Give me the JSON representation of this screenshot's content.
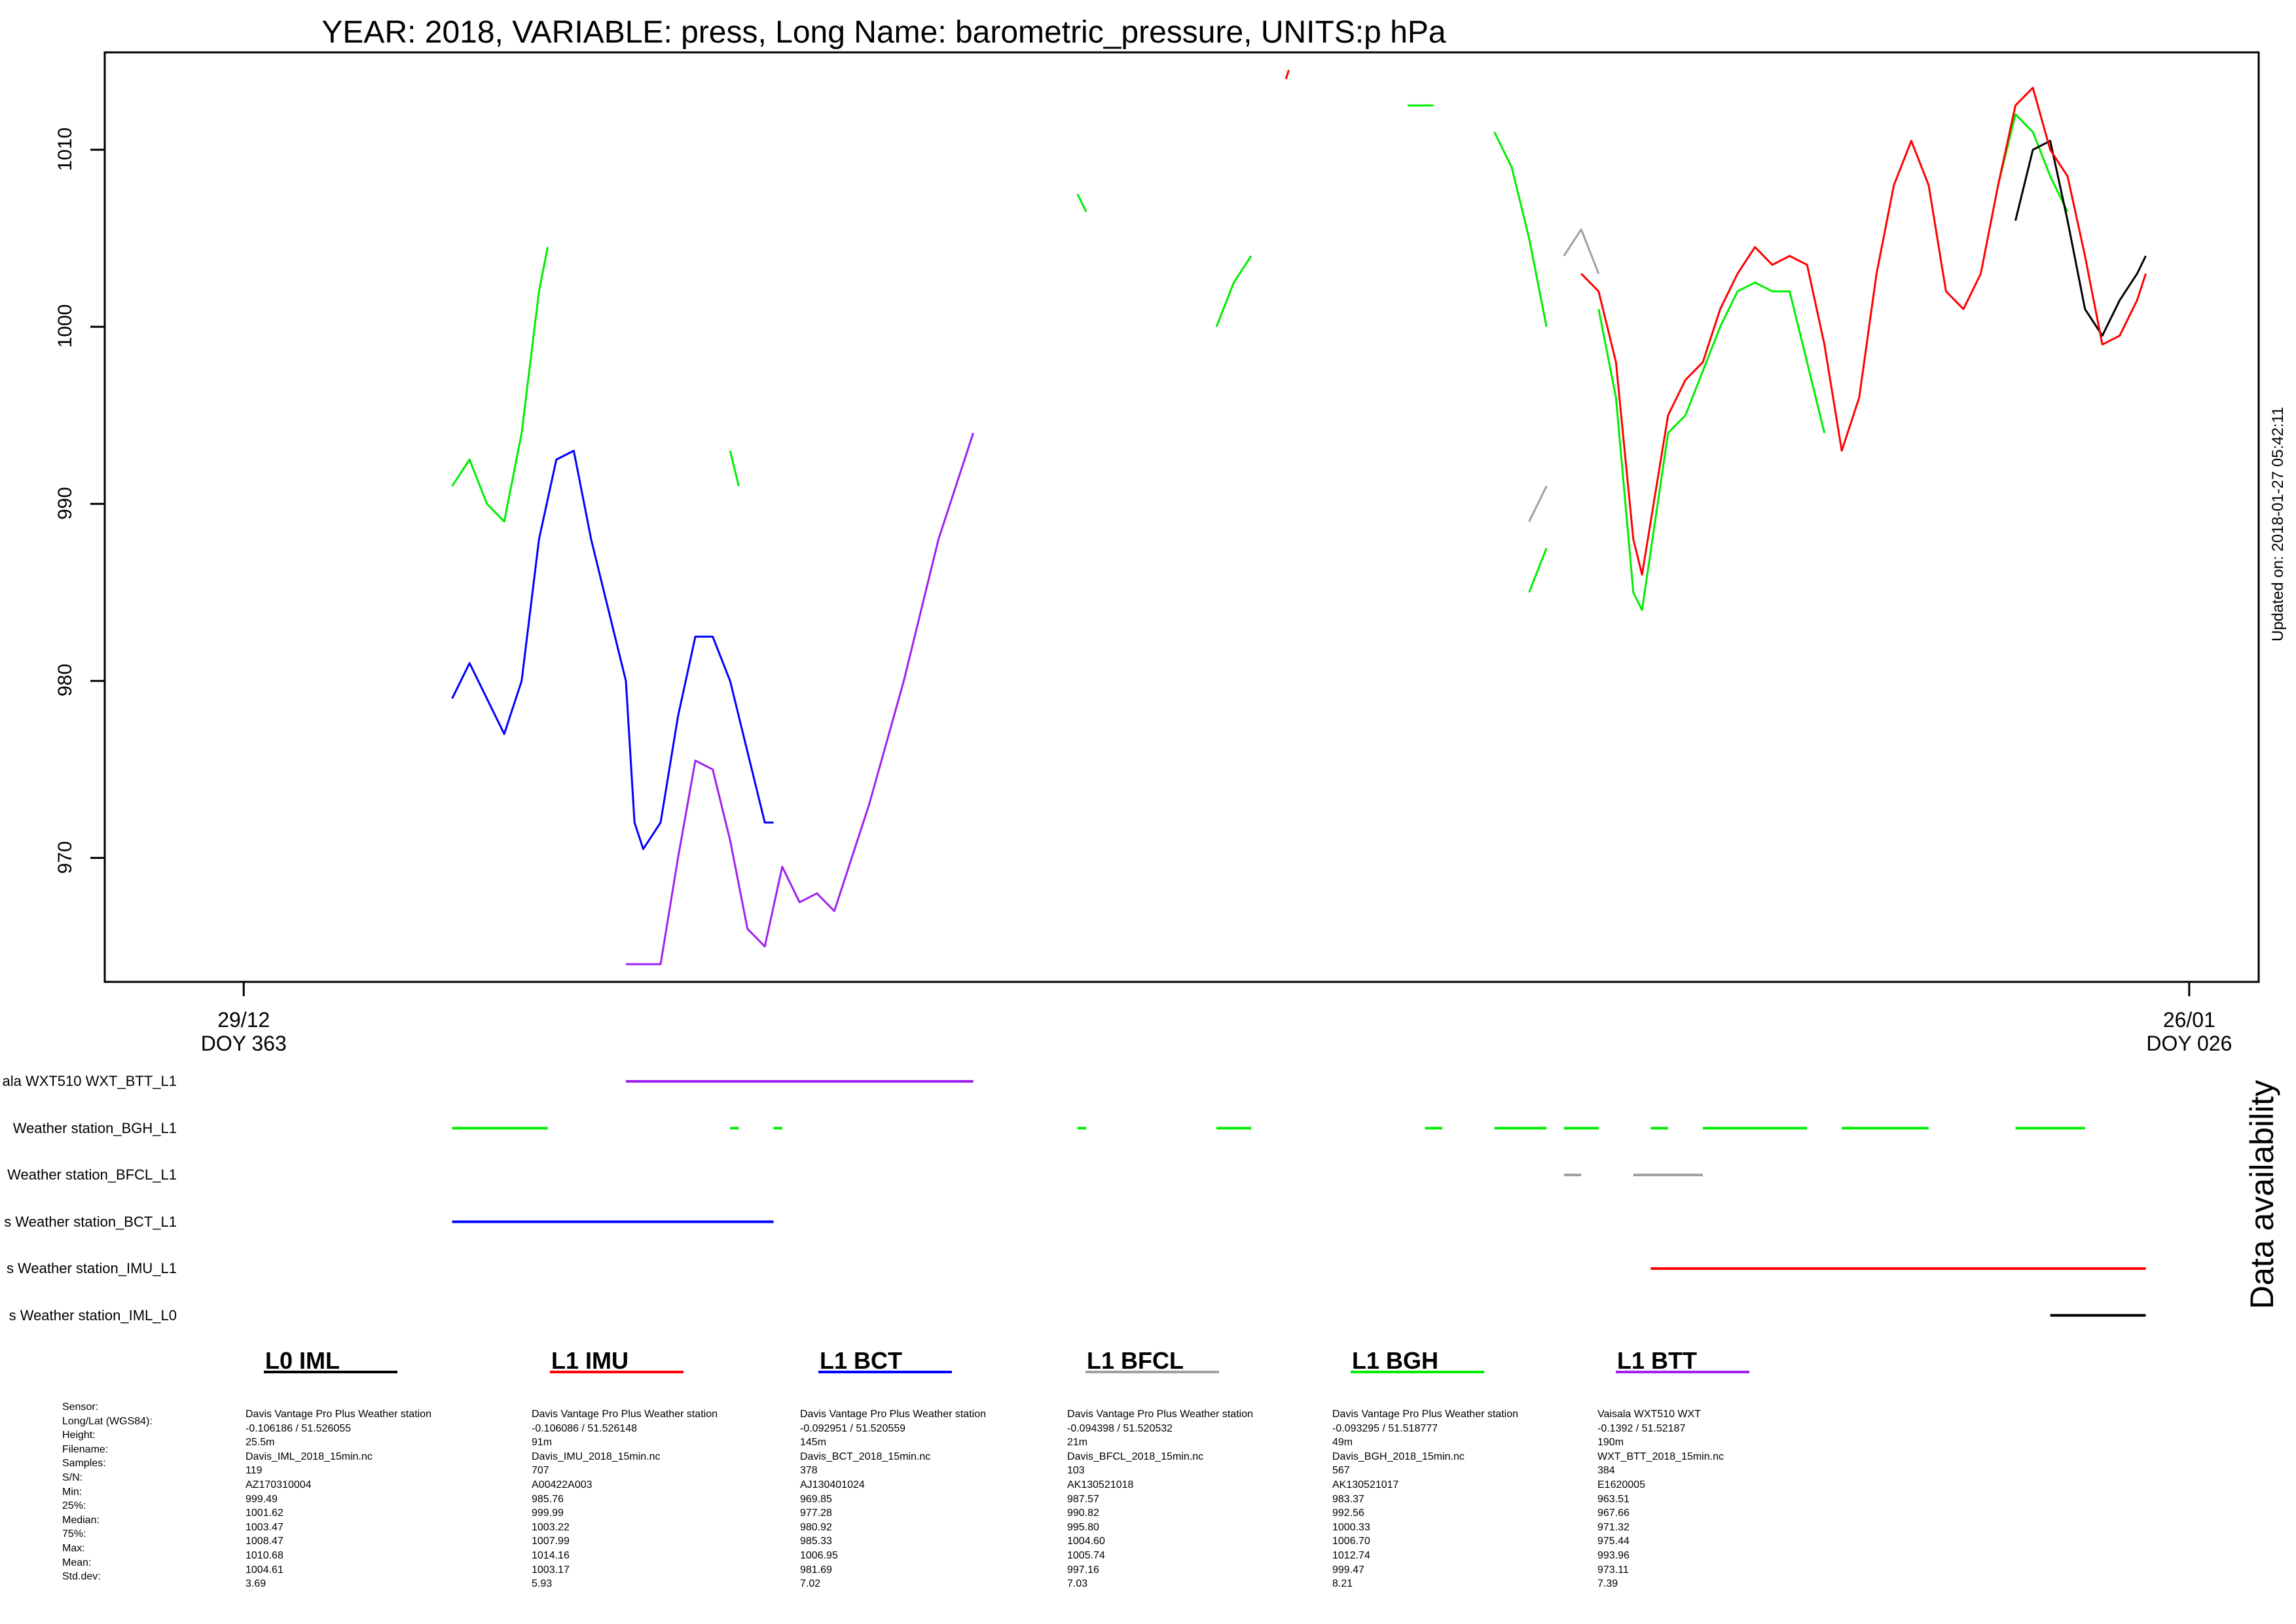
{
  "chart_data": {
    "type": "line",
    "title": "YEAR: 2018, VARIABLE: press, Long Name: barometric_pressure, UNITS:p hPa",
    "xlabel": "",
    "ylabel": "",
    "ylim": [
      963,
      1015.5
    ],
    "y_ticks": [
      "970",
      "980",
      "990",
      "1000",
      "1010"
    ],
    "x_range": [
      "2017-12-27",
      "2018-01-27"
    ],
    "x_ticks": [
      {
        "date": "29/12",
        "doy": "DOY 363"
      },
      {
        "date": "26/01",
        "doy": "DOY 026"
      }
    ],
    "updated": "Updated on: 2018-01-27 05:42:11",
    "series": [
      {
        "name": "L0 IML",
        "color": "#000000",
        "points": [
          [
            "2018-01-23 12:00",
            1006
          ],
          [
            "2018-01-23 18:00",
            1010
          ],
          [
            "2018-01-24 00:00",
            1010.5
          ],
          [
            "2018-01-24 06:00",
            1006
          ],
          [
            "2018-01-24 12:00",
            1001
          ],
          [
            "2018-01-24 18:00",
            999.5
          ],
          [
            "2018-01-25 00:00",
            1001.5
          ],
          [
            "2018-01-25 06:00",
            1003
          ],
          [
            "2018-01-25 09:00",
            1004
          ]
        ]
      },
      {
        "name": "L1 IMU",
        "color": "#ff0000",
        "points": [
          [
            "2018-01-17 06:00",
            1003
          ],
          [
            "2018-01-17 12:00",
            1002
          ],
          [
            "2018-01-17 18:00",
            998
          ],
          [
            "2018-01-18 00:00",
            988
          ],
          [
            "2018-01-18 03:00",
            986
          ],
          [
            "2018-01-18 12:00",
            995
          ],
          [
            "2018-01-18 18:00",
            997
          ],
          [
            "2018-01-19 00:00",
            998
          ],
          [
            "2018-01-19 06:00",
            1001
          ],
          [
            "2018-01-19 12:00",
            1003
          ],
          [
            "2018-01-19 18:00",
            1004.5
          ],
          [
            "2018-01-20 00:00",
            1003.5
          ],
          [
            "2018-01-20 06:00",
            1004
          ],
          [
            "2018-01-20 12:00",
            1003.5
          ],
          [
            "2018-01-20 18:00",
            999
          ],
          [
            "2018-01-21 00:00",
            993
          ],
          [
            "2018-01-21 06:00",
            996
          ],
          [
            "2018-01-21 12:00",
            1003
          ],
          [
            "2018-01-21 18:00",
            1008
          ],
          [
            "2018-01-22 00:00",
            1010.5
          ],
          [
            "2018-01-22 06:00",
            1008
          ],
          [
            "2018-01-22 12:00",
            1002
          ],
          [
            "2018-01-22 18:00",
            1001
          ],
          [
            "2018-01-23 00:00",
            1003
          ],
          [
            "2018-01-23 06:00",
            1008
          ],
          [
            "2018-01-23 12:00",
            1012.5
          ],
          [
            "2018-01-23 18:00",
            1013.5
          ],
          [
            "2018-01-24 00:00",
            1010
          ],
          [
            "2018-01-24 06:00",
            1008.5
          ],
          [
            "2018-01-24 12:00",
            1004
          ],
          [
            "2018-01-24 18:00",
            999
          ],
          [
            "2018-01-25 00:00",
            999.5
          ],
          [
            "2018-01-25 06:00",
            1001.5
          ],
          [
            "2018-01-25 09:00",
            1003
          ]
        ]
      },
      {
        "name": "L1 BCT",
        "color": "#0000ff",
        "points": [
          [
            "2018-01-01 00:00",
            979
          ],
          [
            "2018-01-01 06:00",
            981
          ],
          [
            "2018-01-01 12:00",
            979
          ],
          [
            "2018-01-01 18:00",
            977
          ],
          [
            "2018-01-02 00:00",
            980
          ],
          [
            "2018-01-02 06:00",
            988
          ],
          [
            "2018-01-02 12:00",
            992.5
          ],
          [
            "2018-01-02 18:00",
            993
          ],
          [
            "2018-01-03 00:00",
            988
          ],
          [
            "2018-01-03 06:00",
            984
          ],
          [
            "2018-01-03 12:00",
            980
          ],
          [
            "2018-01-03 15:00",
            972
          ],
          [
            "2018-01-03 18:00",
            970.5
          ],
          [
            "2018-01-04 00:00",
            972
          ],
          [
            "2018-01-04 06:00",
            978
          ],
          [
            "2018-01-04 12:00",
            982.5
          ],
          [
            "2018-01-04 18:00",
            982.5
          ],
          [
            "2018-01-05 00:00",
            980
          ],
          [
            "2018-01-05 06:00",
            976
          ],
          [
            "2018-01-05 12:00",
            972
          ],
          [
            "2018-01-05 15:00",
            972
          ]
        ]
      },
      {
        "name": "L1 BFCL",
        "color": "#a0a0a0",
        "points": [
          [
            "2018-01-17 00:00",
            1004
          ],
          [
            "2018-01-17 06:00",
            1005.5
          ],
          [
            "2018-01-17 12:00",
            1003
          ]
        ]
      },
      {
        "name": "L1 BGH",
        "color": "#00ee00",
        "points": [
          [
            "2018-01-01 00:00",
            991
          ],
          [
            "2018-01-01 06:00",
            992.5
          ],
          [
            "2018-01-01 12:00",
            990
          ],
          [
            "2018-01-01 18:00",
            989
          ],
          [
            "2018-01-02 00:00",
            994
          ],
          [
            "2018-01-02 06:00",
            1002
          ],
          [
            "2018-01-02 09:00",
            1004.5
          ]
        ]
      },
      {
        "name": "L1 BTT",
        "color": "#a020f0",
        "points": [
          [
            "2018-01-03 12:00",
            964
          ],
          [
            "2018-01-04 00:00",
            964
          ],
          [
            "2018-01-04 06:00",
            970
          ],
          [
            "2018-01-04 12:00",
            975.5
          ],
          [
            "2018-01-04 18:00",
            975
          ],
          [
            "2018-01-05 00:00",
            971
          ],
          [
            "2018-01-05 06:00",
            966
          ],
          [
            "2018-01-05 12:00",
            965
          ],
          [
            "2018-01-05 18:00",
            969.5
          ],
          [
            "2018-01-06 00:00",
            967.5
          ],
          [
            "2018-01-06 06:00",
            968
          ],
          [
            "2018-01-06 12:00",
            967
          ],
          [
            "2018-01-07 00:00",
            973
          ],
          [
            "2018-01-07 12:00",
            980
          ],
          [
            "2018-01-08 00:00",
            988
          ],
          [
            "2018-01-08 12:00",
            994
          ]
        ]
      }
    ],
    "extra_segments": [
      {
        "series": "L1 BGH",
        "color": "#00ee00",
        "points": [
          [
            "2018-01-05 00:00",
            993
          ],
          [
            "2018-01-05 03:00",
            991
          ]
        ]
      },
      {
        "series": "L1 BGH",
        "color": "#00ee00",
        "points": [
          [
            "2018-01-10 00:00",
            1007.5
          ],
          [
            "2018-01-10 03:00",
            1006.5
          ]
        ]
      },
      {
        "series": "L1 BGH",
        "color": "#00ee00",
        "points": [
          [
            "2018-01-12 00:00",
            1000
          ],
          [
            "2018-01-12 06:00",
            1002.5
          ],
          [
            "2018-01-12 12:00",
            1004
          ]
        ]
      },
      {
        "series": "L1 BGH",
        "color": "#00ee00",
        "points": [
          [
            "2018-01-14 18:00",
            1012.5
          ],
          [
            "2018-01-15 03:00",
            1012.5
          ]
        ]
      },
      {
        "series": "L1 BGH",
        "color": "#00ee00",
        "points": [
          [
            "2018-01-16 00:00",
            1011
          ],
          [
            "2018-01-16 06:00",
            1009
          ],
          [
            "2018-01-16 12:00",
            1005
          ],
          [
            "2018-01-16 18:00",
            1000
          ]
        ]
      },
      {
        "series": "L1 BGH",
        "color": "#00ee00",
        "points": [
          [
            "2018-01-16 12:00",
            985
          ],
          [
            "2018-01-16 18:00",
            987.5
          ]
        ]
      },
      {
        "series": "L1 BGH",
        "color": "#00ee00",
        "points": [
          [
            "2018-01-17 12:00",
            1001
          ],
          [
            "2018-01-17 18:00",
            996
          ],
          [
            "2018-01-18 00:00",
            985
          ],
          [
            "2018-01-18 03:00",
            984
          ],
          [
            "2018-01-18 12:00",
            994
          ],
          [
            "2018-01-18 18:00",
            995
          ],
          [
            "2018-01-19 06:00",
            1000
          ],
          [
            "2018-01-19 12:00",
            1002
          ],
          [
            "2018-01-19 18:00",
            1002.5
          ],
          [
            "2018-01-20 00:00",
            1002
          ],
          [
            "2018-01-20 06:00",
            1002
          ],
          [
            "2018-01-20 12:00",
            998
          ],
          [
            "2018-01-20 18:00",
            994
          ]
        ]
      },
      {
        "series": "L1 BGH",
        "color": "#00ee00",
        "points": [
          [
            "2018-01-23 06:00",
            1008
          ],
          [
            "2018-01-23 12:00",
            1012
          ],
          [
            "2018-01-23 18:00",
            1011
          ],
          [
            "2018-01-24 00:00",
            1008.5
          ],
          [
            "2018-01-24 06:00",
            1006.5
          ]
        ]
      },
      {
        "series": "L1 BFCL",
        "color": "#a0a0a0",
        "points": [
          [
            "2018-01-16 12:00",
            989
          ],
          [
            "2018-01-16 18:00",
            991
          ]
        ]
      },
      {
        "series": "L1 IMU",
        "color": "#ff0000",
        "points": [
          [
            "2018-01-13 00:00",
            1014
          ],
          [
            "2018-01-13 01:00",
            1014.5
          ]
        ]
      }
    ]
  },
  "availability": {
    "title": "Data availability",
    "rows": [
      {
        "label": "ala WXT510 WXT_BTT_L1",
        "color": "#a020f0",
        "segments": [
          [
            "2018-01-03 12:00",
            "2018-01-08 12:00"
          ]
        ]
      },
      {
        "label": " Weather station_BGH_L1",
        "color": "#00ee00",
        "segments": [
          [
            "2018-01-01 00:00",
            "2018-01-02 09:00"
          ],
          [
            "2018-01-05 00:00",
            "2018-01-05 03:00"
          ],
          [
            "2018-01-05 15:00",
            "2018-01-05 18:00"
          ],
          [
            "2018-01-10 00:00",
            "2018-01-10 03:00"
          ],
          [
            "2018-01-12 00:00",
            "2018-01-12 12:00"
          ],
          [
            "2018-01-15 00:00",
            "2018-01-15 06:00"
          ],
          [
            "2018-01-16 00:00",
            "2018-01-16 18:00"
          ],
          [
            "2018-01-17 00:00",
            "2018-01-17 12:00"
          ],
          [
            "2018-01-18 06:00",
            "2018-01-18 12:00"
          ],
          [
            "2018-01-19 00:00",
            "2018-01-20 12:00"
          ],
          [
            "2018-01-21 00:00",
            "2018-01-22 06:00"
          ],
          [
            "2018-01-23 12:00",
            "2018-01-24 12:00"
          ]
        ]
      },
      {
        "label": "Weather station_BFCL_L1",
        "color": "#a0a0a0",
        "segments": [
          [
            "2018-01-17 00:00",
            "2018-01-17 06:00"
          ],
          [
            "2018-01-18 00:00",
            "2018-01-19 00:00"
          ]
        ]
      },
      {
        "label": "s Weather station_BCT_L1",
        "color": "#0000ff",
        "segments": [
          [
            "2018-01-01 00:00",
            "2018-01-05 15:00"
          ]
        ]
      },
      {
        "label": "s Weather station_IMU_L1",
        "color": "#ff0000",
        "segments": [
          [
            "2018-01-18 06:00",
            "2018-01-25 09:00"
          ]
        ]
      },
      {
        "label": "s Weather station_IML_L0",
        "color": "#000000",
        "segments": [
          [
            "2018-01-24 00:00",
            "2018-01-25 09:00"
          ]
        ]
      }
    ]
  },
  "info": {
    "labels": [
      "Sensor:",
      "Long/Lat (WGS84):",
      "Height:",
      "Filename:",
      "Samples:",
      "S/N:",
      "Min:",
      "25%:",
      "Median:",
      "75%:",
      "Max:",
      "Mean:",
      "Std.dev:"
    ],
    "stations": [
      {
        "name": "L0 IML",
        "color": "#000000",
        "lines": [
          "Davis Vantage Pro Plus Weather station",
          "-0.106186 / 51.526055",
          "25.5m",
          "Davis_IML_2018_15min.nc",
          "119",
          "AZ170310004",
          "999.49",
          "1001.62",
          "1003.47",
          "1008.47",
          "1010.68",
          "1004.61",
          "3.69"
        ]
      },
      {
        "name": "L1 IMU",
        "color": "#ff0000",
        "lines": [
          "Davis Vantage Pro Plus Weather station",
          "-0.106086 / 51.526148",
          "91m",
          "Davis_IMU_2018_15min.nc",
          "707",
          "A00422A003",
          "985.76",
          "999.99",
          "1003.22",
          "1007.99",
          "1014.16",
          "1003.17",
          "5.93"
        ]
      },
      {
        "name": "L1 BCT",
        "color": "#0000ff",
        "lines": [
          "Davis Vantage Pro Plus Weather station",
          "-0.092951 / 51.520559",
          "145m",
          "Davis_BCT_2018_15min.nc",
          "378",
          "AJ130401024",
          "969.85",
          "977.28",
          "980.92",
          "985.33",
          "1006.95",
          "981.69",
          "7.02"
        ]
      },
      {
        "name": "L1 BFCL",
        "color": "#a0a0a0",
        "lines": [
          "Davis Vantage Pro Plus Weather station",
          "-0.094398 / 51.520532",
          "21m",
          "Davis_BFCL_2018_15min.nc",
          "103",
          "AK130521018",
          "987.57",
          "990.82",
          "995.80",
          "1004.60",
          "1005.74",
          "997.16",
          "7.03"
        ]
      },
      {
        "name": "L1 BGH",
        "color": "#00ee00",
        "lines": [
          "Davis Vantage Pro Plus Weather station",
          "-0.093295 / 51.518777",
          "49m",
          "Davis_BGH_2018_15min.nc",
          "567",
          "AK130521017",
          "983.37",
          "992.56",
          "1000.33",
          "1006.70",
          "1012.74",
          "999.47",
          "8.21"
        ]
      },
      {
        "name": "L1 BTT",
        "color": "#a020f0",
        "lines": [
          "Vaisala WXT510 WXT",
          "-0.1392 / 51.52187",
          "190m",
          "WXT_BTT_2018_15min.nc",
          "384",
          "E1620005",
          "963.51",
          "967.66",
          "971.32",
          "975.44",
          "993.96",
          "973.11",
          "7.39"
        ]
      }
    ]
  }
}
